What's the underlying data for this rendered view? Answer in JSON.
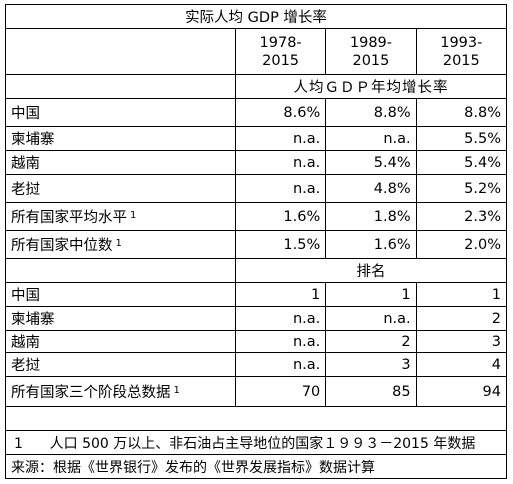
{
  "title": "实际人均 GDP 增长率",
  "years": [
    {
      "top": "1978-",
      "bottom": "2015"
    },
    {
      "top": "1989-",
      "bottom": "2015"
    },
    {
      "top": "1993-",
      "bottom": "2015"
    }
  ],
  "growth_header": "人均ＧＤＰ年均增长率",
  "growth_rows": [
    {
      "label": "中国",
      "sup": "",
      "values": [
        "8.6%",
        "8.8%",
        "8.8%"
      ]
    },
    {
      "label": "柬埔寨",
      "sup": "",
      "values": [
        "n.a.",
        "n.a.",
        "5.5%"
      ]
    },
    {
      "label": "越南",
      "sup": "",
      "values": [
        "n.a.",
        "5.4%",
        "5.4%"
      ]
    },
    {
      "label": "老挝",
      "sup": "",
      "values": [
        "n.a.",
        "4.8%",
        "5.2%"
      ]
    },
    {
      "label": "所有国家平均水平",
      "sup": "1",
      "values": [
        "1.6%",
        "1.8%",
        "2.3%"
      ]
    },
    {
      "label": "所有国家中位数",
      "sup": "1",
      "values": [
        "1.5%",
        "1.6%",
        "2.0%"
      ]
    }
  ],
  "rank_header": "排名",
  "rank_rows": [
    {
      "label": "中国",
      "sup": "",
      "values": [
        "1",
        "1",
        "1"
      ]
    },
    {
      "label": "柬埔寨",
      "sup": "",
      "values": [
        "n.a.",
        "n.a.",
        "2"
      ]
    },
    {
      "label": "越南",
      "sup": "",
      "values": [
        "n.a.",
        "2",
        "3"
      ]
    },
    {
      "label": "老挝",
      "sup": "",
      "values": [
        "n.a.",
        "3",
        "4"
      ]
    },
    {
      "label": "所有国家三个阶段总数据",
      "sup": "1",
      "values": [
        "70",
        "85",
        "94"
      ]
    }
  ],
  "footnote": {
    "marker": "1",
    "text": "人口 500 万以上、非石油占主导地位的国家１９９３－2015 年数据"
  },
  "source": "来源：根据《世界银行》发布的《世界发展指标》数据计算"
}
